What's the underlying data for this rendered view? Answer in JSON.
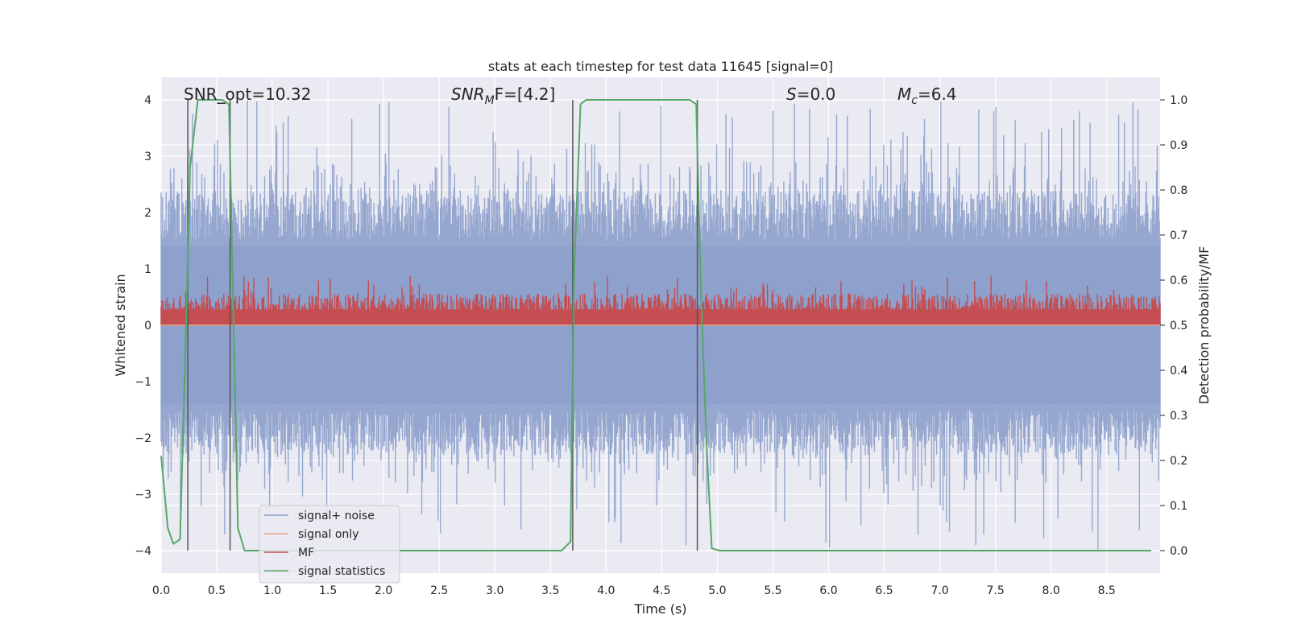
{
  "chart_data": {
    "type": "line",
    "title": "stats at each timestep for test data 11645 [signal=0]",
    "xlabel": "Time (s)",
    "ylabel_left": "Whitened strain",
    "ylabel_right": "Detection probability/MF",
    "xlim": [
      0.0,
      8.98
    ],
    "ylim_left": [
      -4.4,
      4.4
    ],
    "ylim_right": [
      -0.05,
      1.05
    ],
    "xticks": [
      "0.0",
      "0.5",
      "1.0",
      "1.5",
      "2.0",
      "2.5",
      "3.0",
      "3.5",
      "4.0",
      "4.5",
      "5.0",
      "5.5",
      "6.0",
      "6.5",
      "7.0",
      "7.5",
      "8.0",
      "8.5"
    ],
    "yticks_left": [
      "−4",
      "−3",
      "−2",
      "−1",
      "0",
      "1",
      "2",
      "3",
      "4"
    ],
    "yticks_right": [
      "0.0",
      "0.1",
      "0.2",
      "0.3",
      "0.4",
      "0.5",
      "0.6",
      "0.7",
      "0.8",
      "0.9",
      "1.0"
    ],
    "grid": true,
    "legend_position": "lower-left",
    "annotations": {
      "snr_opt": "SNR_opt=10.32",
      "snr_mf_main": "SNR",
      "snr_mf_sub": "M",
      "snr_mf_tail": "F=[4.2]",
      "s_main": "S",
      "s_tail": "=0.0",
      "mc_main": "M",
      "mc_sub": "c",
      "mc_tail": "=6.4"
    },
    "series": [
      {
        "name": "signal+ noise",
        "color": "#8da0cb",
        "axis": "left",
        "envelope": {
          "x_range": [
            0.0,
            8.98
          ],
          "typical_min": -1.5,
          "typical_max": 1.5,
          "peak_min": -4.0,
          "peak_max": 4.0
        }
      },
      {
        "name": "signal only",
        "color": "#e8a088",
        "axis": "left",
        "x": [
          0.0,
          8.98
        ],
        "y": [
          0.0,
          0.0
        ]
      },
      {
        "name": "MF",
        "color": "#c44e52",
        "axis": "right",
        "band": {
          "x_range": [
            0.0,
            8.98
          ],
          "min": 0.5,
          "typical_max": 0.55,
          "peak_max": 0.61
        }
      },
      {
        "name": "signal statistics",
        "color": "#55a868",
        "axis": "right",
        "x": [
          0.0,
          0.06,
          0.11,
          0.17,
          0.23,
          0.26,
          0.33,
          0.44,
          0.55,
          0.61,
          0.69,
          0.75,
          0.82,
          1.0,
          2.0,
          3.0,
          3.6,
          3.68,
          3.71,
          3.77,
          3.82,
          4.0,
          4.3,
          4.6,
          4.75,
          4.81,
          4.85,
          4.9,
          4.95,
          5.02,
          6.0,
          7.0,
          8.0,
          8.9
        ],
        "y": [
          0.21,
          0.05,
          0.015,
          0.025,
          0.55,
          0.85,
          1.0,
          1.0,
          1.0,
          0.99,
          0.05,
          0.0,
          0.0,
          0.0,
          0.0,
          0.0,
          0.0,
          0.02,
          0.6,
          0.99,
          1.0,
          1.0,
          1.0,
          1.0,
          1.0,
          0.99,
          0.6,
          0.25,
          0.005,
          0.0,
          0.0,
          0.0,
          0.0,
          0.0
        ]
      }
    ],
    "vertical_lines_x": [
      0.24,
      0.62,
      3.7,
      4.82
    ]
  }
}
